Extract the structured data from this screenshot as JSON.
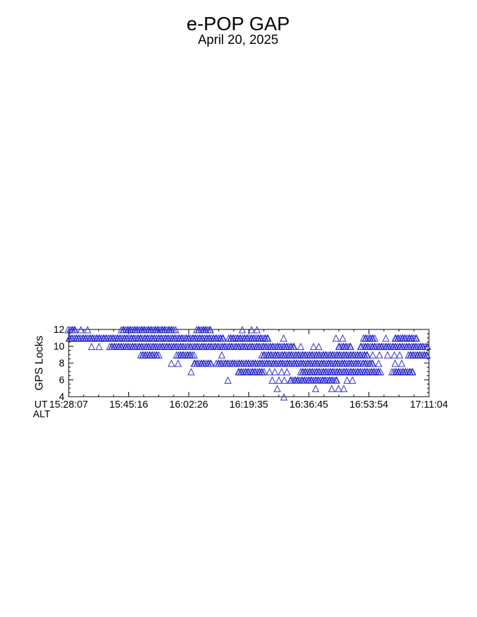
{
  "chart_data": {
    "type": "scatter",
    "title": "e-POP GAP",
    "subtitle": "April 20, 2025",
    "ylabel": "GPS Locks",
    "xlabel_rows": [
      "UT",
      "ALT"
    ],
    "x_tick_labels": [
      "15:28:07",
      "15:45:16",
      "16:02:26",
      "16:19:35",
      "16:36:45",
      "16:53:54",
      "17:11:04"
    ],
    "y_ticks": [
      4,
      6,
      8,
      10,
      12
    ],
    "ylim": [
      4,
      12
    ],
    "grid": false,
    "legend": "none",
    "marker": {
      "shape": "open-triangle",
      "color": "#3030cf"
    },
    "axis_color": "#000000",
    "series": [
      {
        "lock": 12,
        "segments": [
          [
            0.0,
            0.022,
            "dense"
          ],
          [
            0.034,
            0.054,
            "sparse"
          ],
          [
            0.147,
            0.296,
            "dense"
          ],
          [
            0.356,
            0.397,
            "dense"
          ],
          [
            0.507,
            0.534,
            "sparse"
          ]
        ],
        "singles": [
          0.482
        ]
      },
      {
        "lock": 11,
        "segments": [
          [
            0.0,
            0.434,
            "dense"
          ],
          [
            0.444,
            0.557,
            "dense"
          ],
          [
            0.742,
            0.764,
            "sparse"
          ],
          [
            0.819,
            0.852,
            "dense"
          ],
          [
            0.905,
            0.966,
            "dense"
          ]
        ],
        "singles": [
          0.596,
          0.882
        ]
      },
      {
        "lock": 10,
        "segments": [
          [
            0.114,
            0.329,
            "dense"
          ],
          [
            0.333,
            0.625,
            "dense"
          ],
          [
            0.627,
            0.661,
            "sparse"
          ],
          [
            0.678,
            0.697,
            "sparse"
          ],
          [
            0.749,
            0.787,
            "dense"
          ],
          [
            0.81,
            1.0,
            "dense"
          ]
        ],
        "singles": [
          0.063,
          0.086
        ]
      },
      {
        "lock": 9,
        "segments": [
          [
            0.2,
            0.252,
            "dense"
          ],
          [
            0.301,
            0.348,
            "dense"
          ],
          [
            0.537,
            0.834,
            "dense"
          ],
          [
            0.844,
            0.873,
            "sparse"
          ],
          [
            0.886,
            0.93,
            "sparse"
          ],
          [
            0.943,
            1.0,
            "dense"
          ]
        ],
        "singles": [
          0.425
        ]
      },
      {
        "lock": 8,
        "segments": [
          [
            0.347,
            0.397,
            "dense"
          ],
          [
            0.41,
            0.81,
            "dense"
          ],
          [
            0.815,
            0.849,
            "dense"
          ],
          [
            0.906,
            0.931,
            "sparse"
          ]
        ],
        "singles": [
          0.286,
          0.303,
          0.862
        ]
      },
      {
        "lock": 7,
        "segments": [
          [
            0.34,
            0.355,
            "sparse"
          ],
          [
            0.47,
            0.544,
            "dense"
          ],
          [
            0.556,
            0.62,
            "sparse"
          ],
          [
            0.644,
            0.868,
            "dense"
          ],
          [
            0.899,
            0.958,
            "dense"
          ]
        ],
        "singles": []
      },
      {
        "lock": 6,
        "segments": [
          [
            0.565,
            0.602,
            "sparse"
          ],
          [
            0.615,
            0.748,
            "dense"
          ],
          [
            0.772,
            0.79,
            "sparse"
          ]
        ],
        "singles": [
          0.442
        ]
      },
      {
        "lock": 5,
        "segments": [
          [
            0.684,
            0.697,
            "sparse"
          ],
          [
            0.731,
            0.775,
            "sparse"
          ]
        ],
        "singles": [
          0.579
        ]
      },
      {
        "lock": 4,
        "segments": [],
        "singles": [
          0.596
        ]
      }
    ]
  }
}
